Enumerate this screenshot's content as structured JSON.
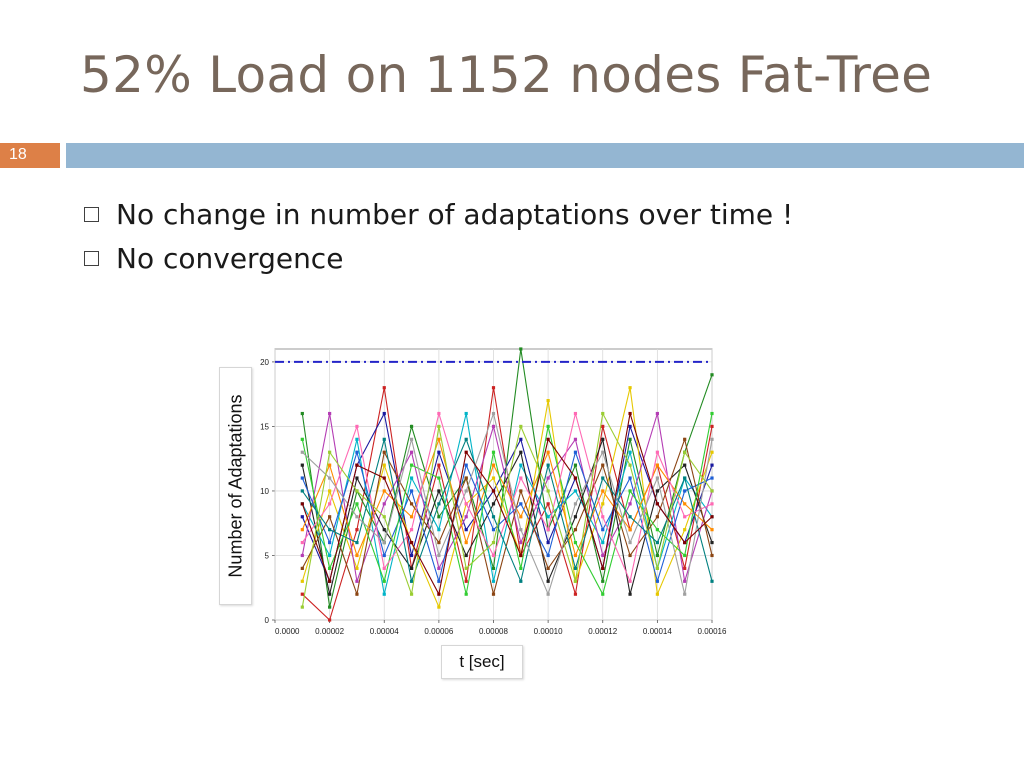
{
  "slide": {
    "title": "52% Load on 1152 nodes Fat-Tree",
    "page_number": "18",
    "bullets": [
      "No change in number of adaptations over time !",
      "No convergence"
    ]
  },
  "colors": {
    "title": "#77675b",
    "page_number_box": "#dd8047",
    "header_bar": "#94b6d2",
    "reference_line": "#2424c8"
  },
  "chart_data": {
    "type": "line",
    "title": "",
    "xlabel": "t [sec]",
    "ylabel": "Number of Adaptations",
    "x": [
      1e-05,
      2e-05,
      3e-05,
      4e-05,
      5e-05,
      6e-05,
      7e-05,
      8e-05,
      9e-05,
      0.0001,
      0.00011,
      0.00012,
      0.00013,
      0.00014,
      0.00015,
      0.00016
    ],
    "xlim": [
      0,
      0.00016
    ],
    "ylim": [
      0,
      21
    ],
    "x_ticks": [
      "0.0000",
      "0.00002",
      "0.00004",
      "0.00006",
      "0.00008",
      "0.00010",
      "0.00012",
      "0.00014",
      "0.00016"
    ],
    "y_ticks": [
      "0",
      "5",
      "10",
      "15",
      "20"
    ],
    "grid": true,
    "reference_line": {
      "y": 20,
      "style": "dash-dot",
      "color": "#2424c8"
    },
    "series": [
      {
        "color": "#cc2222",
        "values": [
          2,
          0,
          7,
          18,
          4,
          12,
          3,
          18,
          5,
          9,
          2,
          15,
          7,
          12,
          4,
          15
        ]
      },
      {
        "color": "#228b22",
        "values": [
          16,
          1,
          10,
          6,
          15,
          8,
          11,
          4,
          21,
          7,
          12,
          3,
          14,
          5,
          13,
          19
        ]
      },
      {
        "color": "#1a1aa0",
        "values": [
          8,
          3,
          12,
          16,
          5,
          13,
          7,
          10,
          14,
          6,
          11,
          4,
          15,
          9,
          6,
          12
        ]
      },
      {
        "color": "#e6c800",
        "values": [
          3,
          10,
          4,
          12,
          6,
          1,
          9,
          11,
          5,
          17,
          3,
          9,
          18,
          2,
          7,
          13
        ]
      },
      {
        "color": "#00b4c8",
        "values": [
          9,
          5,
          14,
          2,
          11,
          7,
          16,
          3,
          12,
          8,
          10,
          6,
          13,
          4,
          11,
          8
        ]
      },
      {
        "color": "#b43cb4",
        "values": [
          5,
          16,
          3,
          9,
          13,
          4,
          8,
          15,
          6,
          11,
          14,
          5,
          9,
          16,
          3,
          10
        ]
      },
      {
        "color": "#222222",
        "values": [
          12,
          2,
          11,
          7,
          4,
          10,
          5,
          9,
          13,
          3,
          8,
          14,
          2,
          10,
          12,
          6
        ]
      },
      {
        "color": "#ff8c00",
        "values": [
          7,
          12,
          5,
          10,
          8,
          14,
          6,
          12,
          8,
          13,
          5,
          10,
          7,
          12,
          9,
          7
        ]
      },
      {
        "color": "#1e5fd6",
        "values": [
          11,
          6,
          13,
          5,
          10,
          3,
          12,
          7,
          9,
          5,
          13,
          7,
          11,
          3,
          10,
          11
        ]
      },
      {
        "color": "#8b4513",
        "values": [
          4,
          8,
          2,
          13,
          9,
          6,
          11,
          2,
          10,
          4,
          7,
          12,
          5,
          8,
          14,
          5
        ]
      },
      {
        "color": "#32cd32",
        "values": [
          14,
          4,
          9,
          3,
          12,
          11,
          2,
          13,
          4,
          15,
          6,
          2,
          10,
          7,
          5,
          16
        ]
      },
      {
        "color": "#ff69b4",
        "values": [
          6,
          9,
          15,
          4,
          7,
          16,
          9,
          5,
          11,
          7,
          16,
          8,
          3,
          13,
          8,
          9
        ]
      },
      {
        "color": "#008080",
        "values": [
          10,
          7,
          6,
          14,
          3,
          9,
          14,
          8,
          3,
          12,
          4,
          11,
          8,
          6,
          11,
          3
        ]
      },
      {
        "color": "#a0a0a0",
        "values": [
          13,
          11,
          8,
          6,
          14,
          5,
          10,
          16,
          7,
          2,
          9,
          13,
          6,
          11,
          2,
          14
        ]
      },
      {
        "color": "#9acd32",
        "values": [
          1,
          13,
          10,
          8,
          2,
          15,
          4,
          6,
          15,
          10,
          3,
          16,
          12,
          4,
          13,
          10
        ]
      },
      {
        "color": "#800000",
        "values": [
          9,
          3,
          12,
          11,
          6,
          2,
          13,
          10,
          5,
          14,
          11,
          4,
          16,
          9,
          6,
          8
        ]
      }
    ]
  }
}
